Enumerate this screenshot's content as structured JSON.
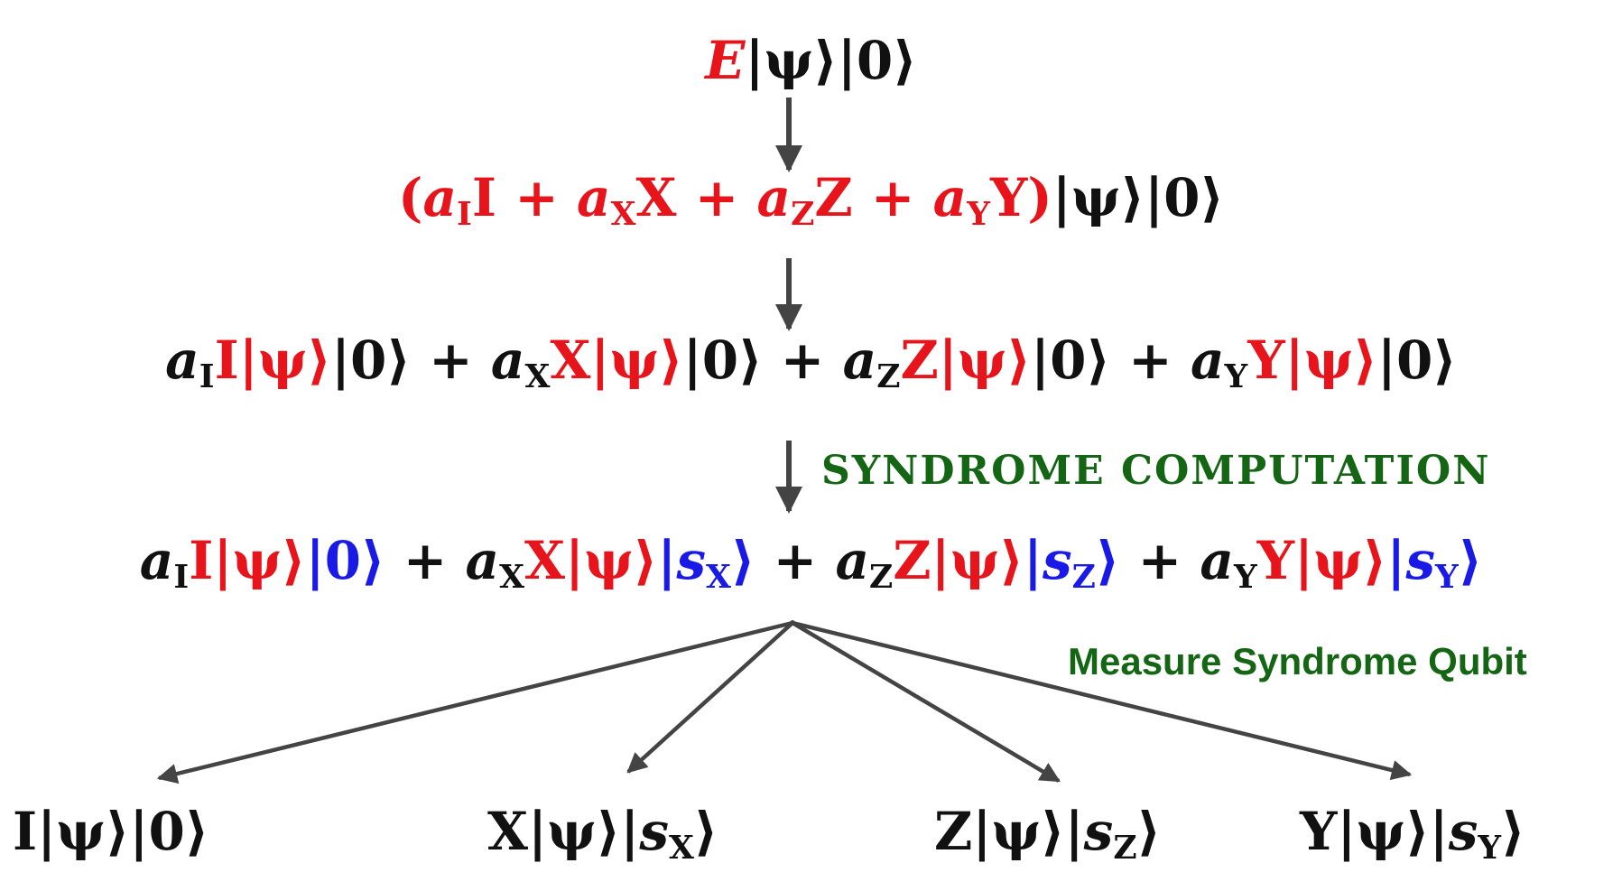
{
  "colors": {
    "error_red": "#e8141c",
    "black": "#111111",
    "syndrome_blue": "#1a1ae6",
    "label_green": "#146614",
    "arrow_gray": "#444444"
  },
  "equations": {
    "row1": {
      "E": "E",
      "psi": "|ψ⟩",
      "zero": "|0⟩"
    },
    "row2": {
      "open": "(",
      "aI": "a",
      "subI": "I",
      "I": "I",
      "plus1": " + ",
      "aX": "a",
      "subX": "X",
      "X": "X",
      "plus2": " + ",
      "aZ": "a",
      "subZ": "Z",
      "Z": "Z",
      "plus3": " + ",
      "aY": "a",
      "subY": "Y",
      "Y": "Y",
      "close": ")",
      "psi": "|ψ⟩",
      "zero": "|0⟩"
    },
    "row3": {
      "t1_a": "a",
      "t1_sub": "I",
      "t1_op": "I",
      "t1_psi": "|ψ⟩",
      "t1_anc": "|0⟩",
      "p1": " + ",
      "t2_a": "a",
      "t2_sub": "X",
      "t2_op": "X",
      "t2_psi": "|ψ⟩",
      "t2_anc": "|0⟩",
      "p2": " + ",
      "t3_a": "a",
      "t3_sub": "Z",
      "t3_op": "Z",
      "t3_psi": "|ψ⟩",
      "t3_anc": "|0⟩",
      "p3": " + ",
      "t4_a": "a",
      "t4_sub": "Y",
      "t4_op": "Y",
      "t4_psi": "|ψ⟩",
      "t4_anc": "|0⟩"
    },
    "row4": {
      "t1_a": "a",
      "t1_sub": "I",
      "t1_op": "I",
      "t1_psi": "|ψ⟩",
      "t1_anc": "|0⟩",
      "p1": " + ",
      "t2_a": "a",
      "t2_sub": "X",
      "t2_op": "X",
      "t2_psi": "|ψ⟩",
      "t2_anc_open": "|",
      "t2_s": "s",
      "t2_s_sub": "X",
      "t2_anc_close": "⟩",
      "p2": " + ",
      "t3_a": "a",
      "t3_sub": "Z",
      "t3_op": "Z",
      "t3_psi": "|ψ⟩",
      "t3_anc_open": "|",
      "t3_s": "s",
      "t3_s_sub": "Z",
      "t3_anc_close": "⟩",
      "p3": " + ",
      "t4_a": "a",
      "t4_sub": "Y",
      "t4_op": "Y",
      "t4_psi": "|ψ⟩",
      "t4_anc_open": "|",
      "t4_s": "s",
      "t4_s_sub": "Y",
      "t4_anc_close": "⟩"
    }
  },
  "labels": {
    "syndrome_computation": "SYNDROME COMPUTATION",
    "measure_syndrome": "Measure Syndrome Qubit"
  },
  "outcomes": [
    {
      "op": "I",
      "psi": "|ψ⟩",
      "anc_open": "|",
      "anc_val": "0",
      "anc_sub": "",
      "anc_close": "⟩"
    },
    {
      "op": "X",
      "psi": "|ψ⟩",
      "anc_open": "|",
      "anc_val": "s",
      "anc_sub": "X",
      "anc_close": "⟩"
    },
    {
      "op": "Z",
      "psi": "|ψ⟩",
      "anc_open": "|",
      "anc_val": "s",
      "anc_sub": "Z",
      "anc_close": "⟩"
    },
    {
      "op": "Y",
      "psi": "|ψ⟩",
      "anc_open": "|",
      "anc_val": "s",
      "anc_sub": "Y",
      "anc_close": "⟩"
    }
  ]
}
